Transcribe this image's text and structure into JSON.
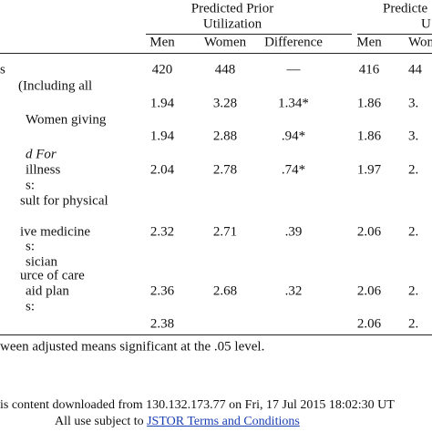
{
  "header": {
    "group1": [
      "Predicted Prior",
      "Utilization"
    ],
    "group2": [
      "Predicte",
      "U"
    ]
  },
  "columns": [
    "Men",
    "Women",
    "Difference",
    "Men",
    "Wome"
  ],
  "rows": [
    {
      "label": "s",
      "cells": [
        "420",
        "448",
        "—",
        "416",
        "44"
      ]
    },
    {
      "label": "(Including all"
    },
    {
      "cells": [
        "1.94",
        "3.28",
        "1.34*",
        "1.86",
        "3."
      ]
    },
    {
      "label": "Women giving"
    },
    {
      "cells": [
        "1.94",
        "2.88",
        ".94*",
        "1.86",
        "3."
      ]
    },
    {
      "label": "d For"
    },
    {
      "label": "illness",
      "cells": [
        "2.04",
        "2.78",
        ".74*",
        "1.97",
        "2."
      ]
    },
    {
      "label": "s:"
    },
    {
      "label": "sult for physical"
    },
    {
      "label": "ive medicine",
      "cells": [
        "2.32",
        "2.71",
        ".39",
        "2.06",
        "2."
      ]
    },
    {
      "label": "s:"
    },
    {
      "label": "sician"
    },
    {
      "label": "urce of care"
    },
    {
      "label": "aid plan",
      "cells": [
        "2.36",
        "2.68",
        ".32",
        "2.06",
        "2."
      ]
    },
    {
      "label": "s:"
    },
    {
      "cells": [
        "2.38",
        null,
        null,
        "2.06",
        "2."
      ]
    }
  ],
  "footnote": "ween adjusted means significant at the .05 level.",
  "footer": {
    "line1": "is content downloaded from 130.132.173.77 on Fri, 17 Jul 2015 18:02:30 UT",
    "line2": "All use subject to",
    "link": "JSTOR Terms and Conditions"
  }
}
